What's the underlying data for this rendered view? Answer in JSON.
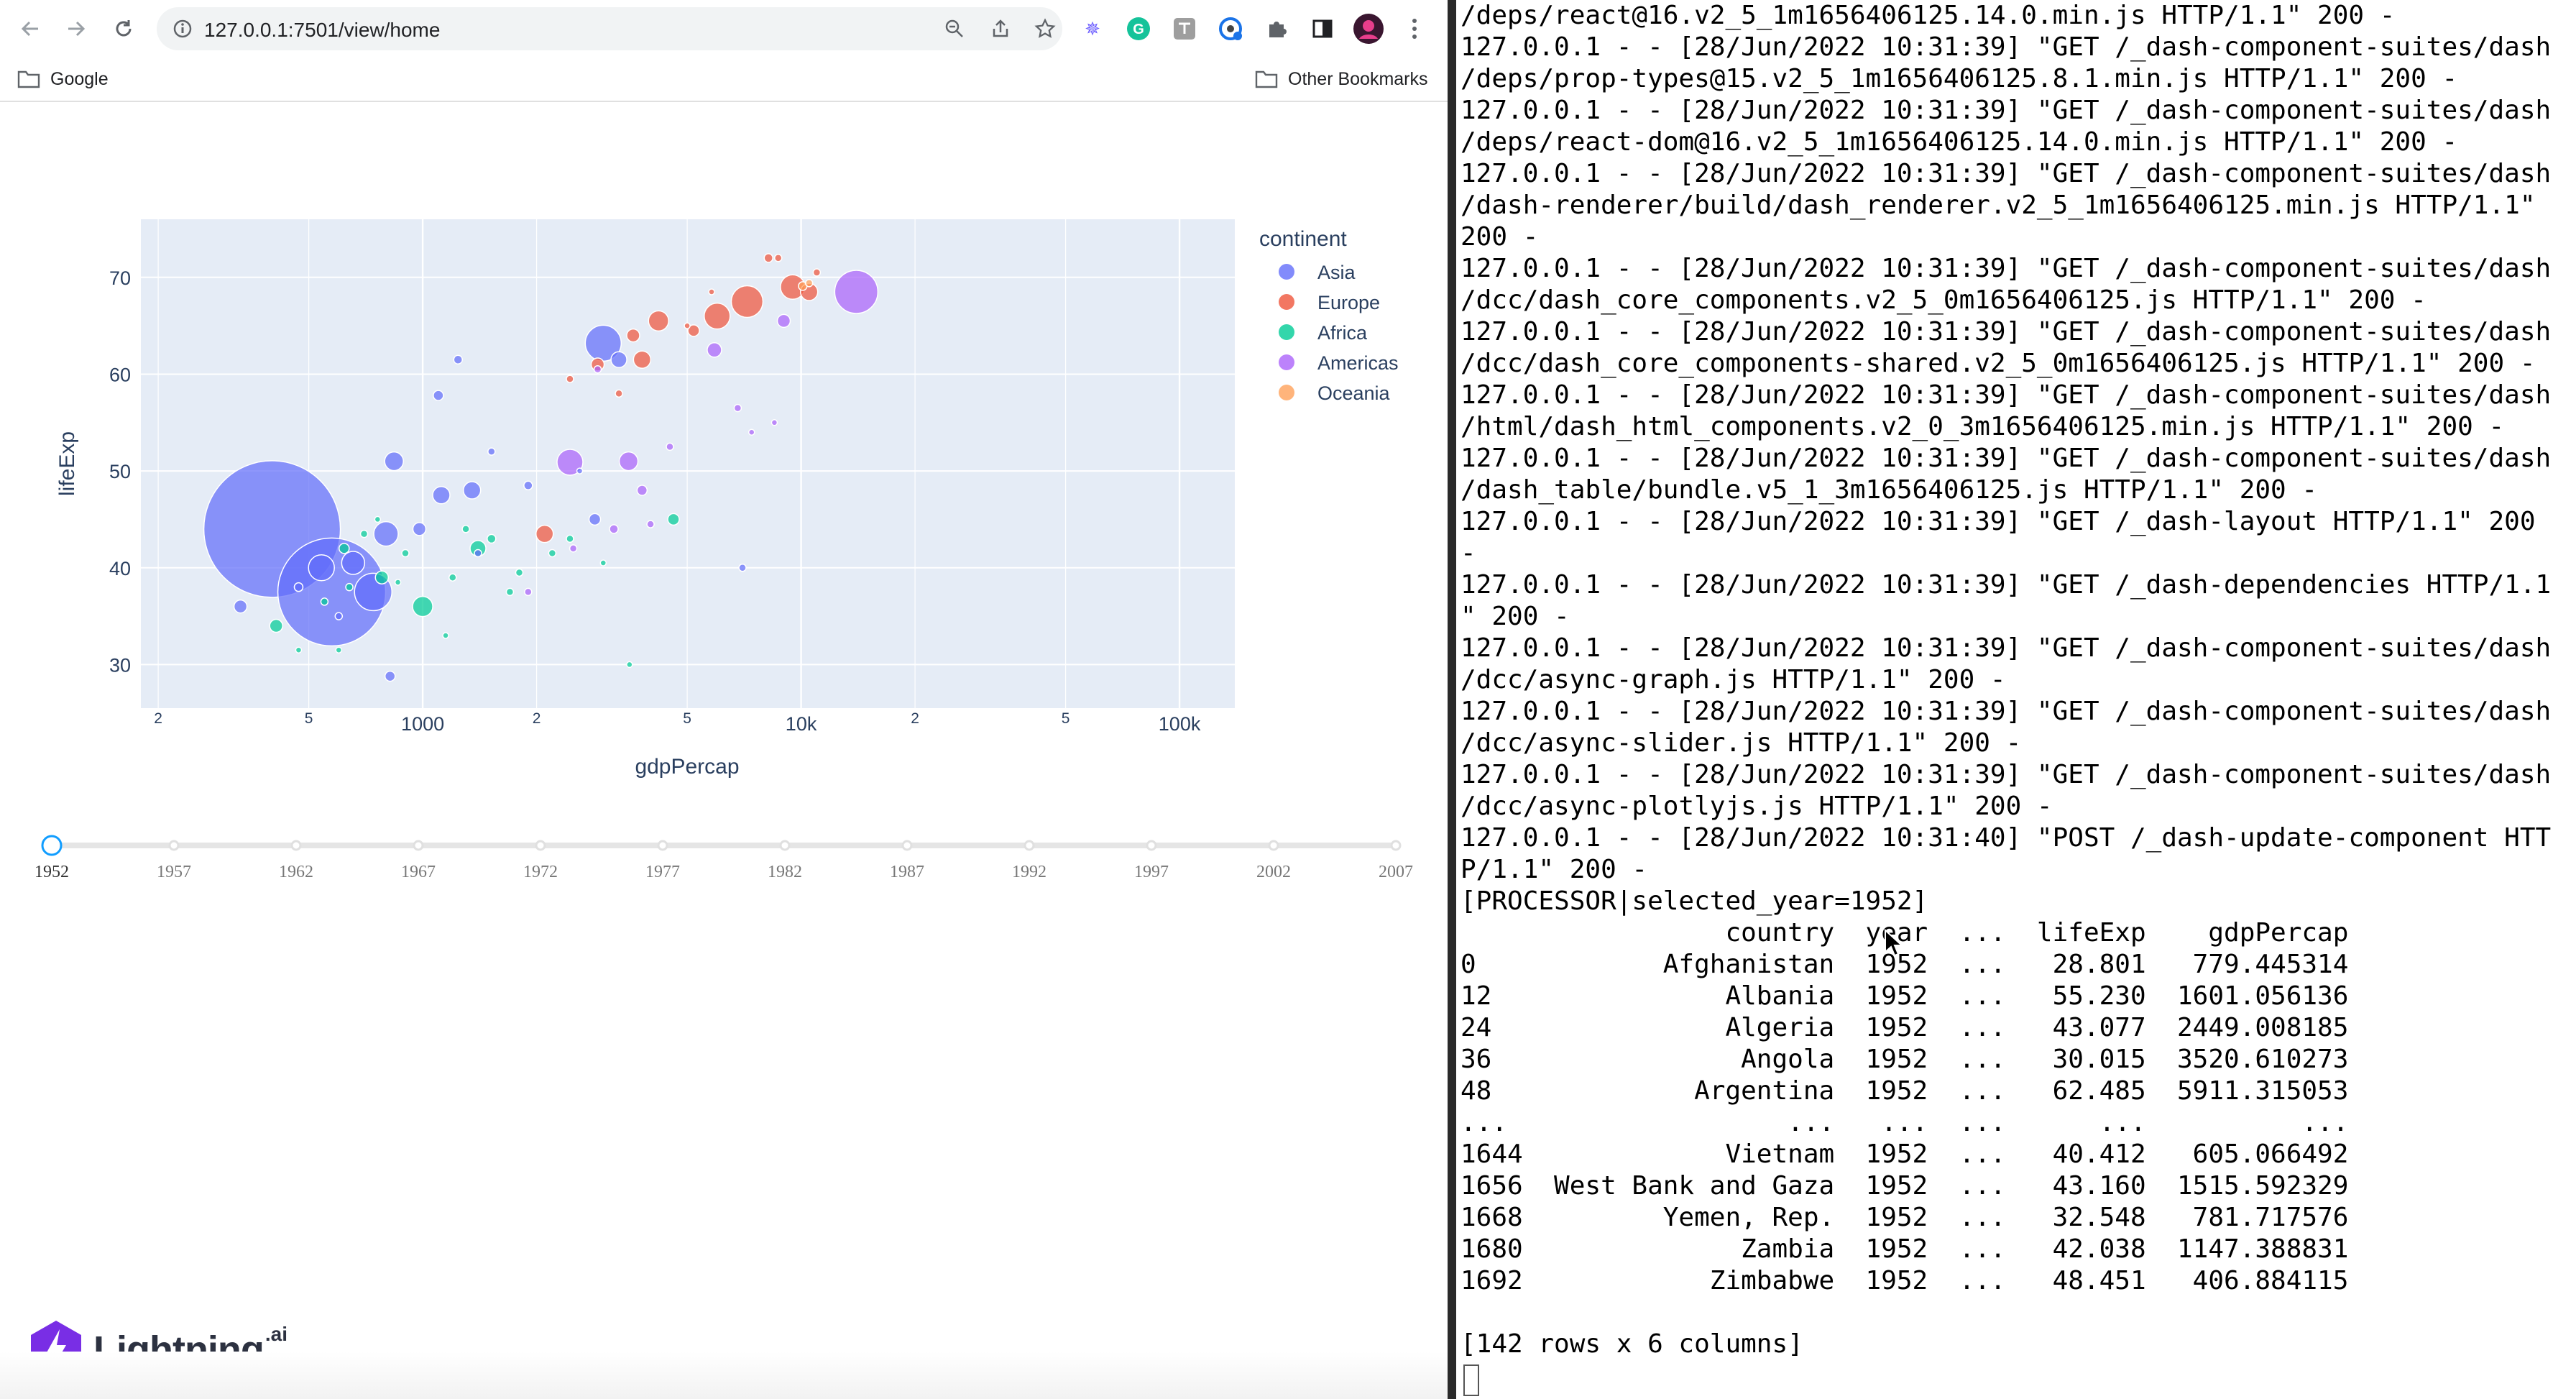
{
  "browser": {
    "url": "127.0.0.1:7501/view/home",
    "bookmarks": {
      "left": "Google",
      "right": "Other Bookmarks"
    }
  },
  "chart_data": {
    "type": "scatter",
    "xlabel": "gdpPercap",
    "ylabel": "lifeExp",
    "x_scale": "log",
    "xlim": [
      180,
      140000
    ],
    "ylim": [
      25.5,
      76
    ],
    "x_ticks": [
      {
        "v": 200,
        "label": "2"
      },
      {
        "v": 500,
        "label": "5"
      },
      {
        "v": 1000,
        "label": "1000"
      },
      {
        "v": 2000,
        "label": "2"
      },
      {
        "v": 5000,
        "label": "5"
      },
      {
        "v": 10000,
        "label": "10k"
      },
      {
        "v": 20000,
        "label": "2"
      },
      {
        "v": 50000,
        "label": "5"
      },
      {
        "v": 100000,
        "label": "100k"
      }
    ],
    "y_ticks": [
      30,
      40,
      50,
      60,
      70
    ],
    "grid": true,
    "legend_title": "continent",
    "legend_position": "right",
    "colors": {
      "Asia": "#636efa",
      "Europe": "#ef553b",
      "Africa": "#00cc96",
      "Americas": "#ab63fa",
      "Oceania": "#ffa15a"
    },
    "series": [
      {
        "name": "Asia",
        "points": [
          [
            400,
            44.0,
            95
          ],
          [
            575,
            37.5,
            75
          ],
          [
            540,
            40.0,
            18
          ],
          [
            655,
            40.5,
            16
          ],
          [
            740,
            37.5,
            26
          ],
          [
            800,
            43.5,
            17
          ],
          [
            840,
            51.0,
            13
          ],
          [
            980,
            44.0,
            9
          ],
          [
            1120,
            47.5,
            12
          ],
          [
            1240,
            61.5,
            6
          ],
          [
            1100,
            57.8,
            7
          ],
          [
            1350,
            48.0,
            12
          ],
          [
            1520,
            52.0,
            5
          ],
          [
            1900,
            48.5,
            6
          ],
          [
            3000,
            63.2,
            25
          ],
          [
            2850,
            45.0,
            8
          ],
          [
            3300,
            61.5,
            11
          ],
          [
            7000,
            40.0,
            5
          ],
          [
            820,
            28.8,
            7
          ],
          [
            330,
            36.0,
            9
          ],
          [
            1400,
            41.5,
            5
          ],
          [
            470,
            38.0,
            6
          ],
          [
            600,
            35.0,
            5
          ],
          [
            2600,
            50.0,
            4
          ]
        ]
      },
      {
        "name": "Europe",
        "points": [
          [
            4200,
            65.5,
            14
          ],
          [
            6000,
            66.0,
            18
          ],
          [
            7200,
            67.5,
            22
          ],
          [
            9500,
            69.0,
            17
          ],
          [
            10500,
            68.5,
            12
          ],
          [
            3800,
            61.5,
            12
          ],
          [
            2900,
            61.0,
            9
          ],
          [
            3600,
            64.0,
            9
          ],
          [
            2100,
            43.5,
            12
          ],
          [
            5200,
            64.5,
            8
          ],
          [
            3300,
            58.0,
            5
          ],
          [
            8200,
            72.0,
            6
          ],
          [
            8700,
            72.0,
            5
          ],
          [
            11000,
            70.5,
            5
          ],
          [
            2450,
            59.5,
            5
          ],
          [
            5800,
            68.5,
            4
          ],
          [
            5000,
            65.0,
            4
          ]
        ]
      },
      {
        "name": "Africa",
        "points": [
          [
            1000,
            36.0,
            14
          ],
          [
            1400,
            42.0,
            11
          ],
          [
            2450,
            43.0,
            5
          ],
          [
            3520,
            30.0,
            4
          ],
          [
            410,
            34.0,
            9
          ],
          [
            620,
            42.0,
            7
          ],
          [
            780,
            39.0,
            9
          ],
          [
            1520,
            43.0,
            6
          ],
          [
            4600,
            45.0,
            8
          ],
          [
            700,
            43.5,
            5
          ],
          [
            900,
            41.5,
            5
          ],
          [
            1200,
            39.0,
            5
          ],
          [
            1700,
            37.5,
            5
          ],
          [
            2200,
            41.5,
            5
          ],
          [
            550,
            36.5,
            5
          ],
          [
            1800,
            39.5,
            5
          ],
          [
            470,
            31.5,
            4
          ],
          [
            600,
            31.5,
            4
          ],
          [
            1150,
            33.0,
            4
          ],
          [
            1300,
            44.0,
            5
          ],
          [
            760,
            45.0,
            4
          ],
          [
            860,
            38.5,
            4
          ],
          [
            3000,
            40.5,
            4
          ],
          [
            640,
            38.0,
            5
          ]
        ]
      },
      {
        "name": "Americas",
        "points": [
          [
            2450,
            50.9,
            18
          ],
          [
            3500,
            51.0,
            13
          ],
          [
            5900,
            62.5,
            10
          ],
          [
            13990,
            68.5,
            30
          ],
          [
            9000,
            65.5,
            9
          ],
          [
            6800,
            56.5,
            5
          ],
          [
            3800,
            48.0,
            7
          ],
          [
            1900,
            37.5,
            5
          ],
          [
            3200,
            44.0,
            6
          ],
          [
            4000,
            44.5,
            5
          ],
          [
            8500,
            55.0,
            4
          ],
          [
            2500,
            42.0,
            5
          ],
          [
            2900,
            60.5,
            5
          ],
          [
            4500,
            52.5,
            5
          ],
          [
            7400,
            54.0,
            4
          ]
        ]
      },
      {
        "name": "Oceania",
        "points": [
          [
            10100,
            69.1,
            6
          ],
          [
            10500,
            69.4,
            5
          ]
        ]
      }
    ]
  },
  "slider": {
    "years": [
      "1952",
      "1957",
      "1962",
      "1967",
      "1972",
      "1977",
      "1982",
      "1987",
      "1992",
      "1997",
      "2002",
      "2007"
    ],
    "selected": "1952"
  },
  "brand": {
    "name": "Lightning",
    "sup": ".ai"
  },
  "terminal": {
    "lines": [
      "/deps/react@16.v2_5_1m1656406125.14.0.min.js HTTP/1.1\" 200 -",
      "127.0.0.1 - - [28/Jun/2022 10:31:39] \"GET /_dash-component-suites/dash",
      "/deps/prop-types@15.v2_5_1m1656406125.8.1.min.js HTTP/1.1\" 200 -",
      "127.0.0.1 - - [28/Jun/2022 10:31:39] \"GET /_dash-component-suites/dash",
      "/deps/react-dom@16.v2_5_1m1656406125.14.0.min.js HTTP/1.1\" 200 -",
      "127.0.0.1 - - [28/Jun/2022 10:31:39] \"GET /_dash-component-suites/dash",
      "/dash-renderer/build/dash_renderer.v2_5_1m1656406125.min.js HTTP/1.1\"",
      "200 -",
      "127.0.0.1 - - [28/Jun/2022 10:31:39] \"GET /_dash-component-suites/dash",
      "/dcc/dash_core_components.v2_5_0m1656406125.js HTTP/1.1\" 200 -",
      "127.0.0.1 - - [28/Jun/2022 10:31:39] \"GET /_dash-component-suites/dash",
      "/dcc/dash_core_components-shared.v2_5_0m1656406125.js HTTP/1.1\" 200 -",
      "127.0.0.1 - - [28/Jun/2022 10:31:39] \"GET /_dash-component-suites/dash",
      "/html/dash_html_components.v2_0_3m1656406125.min.js HTTP/1.1\" 200 -",
      "127.0.0.1 - - [28/Jun/2022 10:31:39] \"GET /_dash-component-suites/dash",
      "/dash_table/bundle.v5_1_3m1656406125.js HTTP/1.1\" 200 -",
      "127.0.0.1 - - [28/Jun/2022 10:31:39] \"GET /_dash-layout HTTP/1.1\" 200",
      "-",
      "127.0.0.1 - - [28/Jun/2022 10:31:39] \"GET /_dash-dependencies HTTP/1.1",
      "\" 200 -",
      "127.0.0.1 - - [28/Jun/2022 10:31:39] \"GET /_dash-component-suites/dash",
      "/dcc/async-graph.js HTTP/1.1\" 200 -",
      "127.0.0.1 - - [28/Jun/2022 10:31:39] \"GET /_dash-component-suites/dash",
      "/dcc/async-slider.js HTTP/1.1\" 200 -",
      "127.0.0.1 - - [28/Jun/2022 10:31:39] \"GET /_dash-component-suites/dash",
      "/dcc/async-plotlyjs.js HTTP/1.1\" 200 -",
      "127.0.0.1 - - [28/Jun/2022 10:31:40] \"POST /_dash-update-component HTT",
      "P/1.1\" 200 -",
      "[PROCESSOR|selected_year=1952]",
      "                 country  year  ...  lifeExp    gdpPercap",
      "0            Afghanistan  1952  ...   28.801   779.445314",
      "12               Albania  1952  ...   55.230  1601.056136",
      "24               Algeria  1952  ...   43.077  2449.008185",
      "36                Angola  1952  ...   30.015  3520.610273",
      "48             Argentina  1952  ...   62.485  5911.315053",
      "...                  ...   ...  ...      ...          ...",
      "1644             Vietnam  1952  ...   40.412   605.066492",
      "1656  West Bank and Gaza  1952  ...   43.160  1515.592329",
      "1668         Yemen, Rep.  1952  ...   32.548   781.717576",
      "1680              Zambia  1952  ...   42.038  1147.388831",
      "1692            Zimbabwe  1952  ...   48.451   406.884115",
      "",
      "[142 rows x 6 columns]"
    ]
  }
}
